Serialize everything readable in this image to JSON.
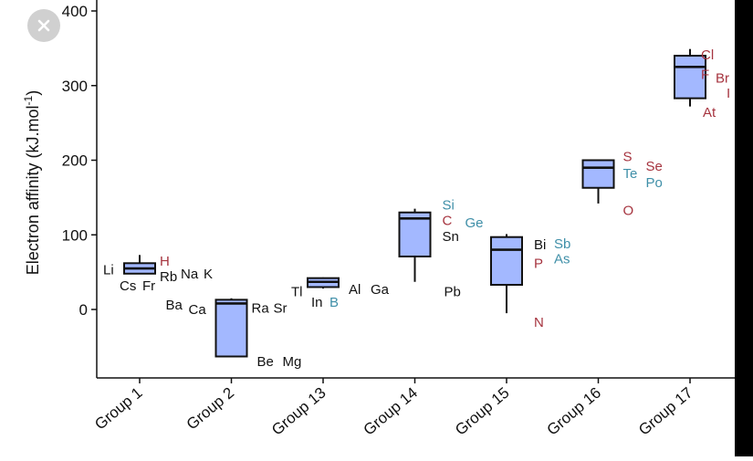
{
  "viewer": {
    "close_icon": "close-icon"
  },
  "colors": {
    "box_fill": "#a3b8ff",
    "black": "#111111",
    "red": "#a6343f",
    "teal": "#3f8fa8"
  },
  "chart_data": {
    "type": "box",
    "title": "",
    "xlabel": "",
    "ylabel": "Electron affinity (kJ.mol",
    "ylabel_sup": "-1",
    "ylabel_close": ")",
    "ylim": [
      -95,
      405
    ],
    "yticks": [
      0,
      100,
      200,
      300,
      400
    ],
    "grid": false,
    "categories": [
      "Group 1",
      "Group 2",
      "Group 13",
      "Group 14",
      "Group 15",
      "Group 16",
      "Group 17"
    ],
    "boxes": [
      {
        "group": "Group 1",
        "min": 48,
        "q1": 48,
        "median": 55,
        "q3": 62,
        "max": 73
      },
      {
        "group": "Group 2",
        "min": -63,
        "q1": -63,
        "median": 8,
        "q3": 13,
        "max": 15
      },
      {
        "group": "Group 13",
        "min": 28,
        "q1": 30,
        "median": 37,
        "q3": 42,
        "max": 43
      },
      {
        "group": "Group 14",
        "min": 37,
        "q1": 71,
        "median": 122,
        "q3": 130,
        "max": 135
      },
      {
        "group": "Group 15",
        "min": -5,
        "q1": 33,
        "median": 80,
        "q3": 97,
        "max": 101
      },
      {
        "group": "Group 16",
        "min": 142,
        "q1": 163,
        "median": 190,
        "q3": 200,
        "max": 200
      },
      {
        "group": "Group 17",
        "min": 272,
        "q1": 283,
        "median": 325,
        "q3": 340,
        "max": 349
      }
    ],
    "element_labels": [
      {
        "group": "Group 1",
        "text": "Li",
        "y": 53,
        "dx": -40,
        "color": "black"
      },
      {
        "group": "Group 1",
        "text": "H",
        "y": 65,
        "dx": 22,
        "color": "red"
      },
      {
        "group": "Group 1",
        "text": "Rb",
        "y": 44,
        "dx": 22,
        "color": "black"
      },
      {
        "group": "Group 1",
        "text": "Na",
        "y": 48,
        "dx": 45,
        "color": "black"
      },
      {
        "group": "Group 1",
        "text": "K",
        "y": 48,
        "dx": 70,
        "color": "black"
      },
      {
        "group": "Group 1",
        "text": "Cs",
        "y": 32,
        "dx": -22,
        "color": "black"
      },
      {
        "group": "Group 1",
        "text": "Fr",
        "y": 32,
        "dx": 3,
        "color": "black"
      },
      {
        "group": "Group 2",
        "text": "Ba",
        "y": 6,
        "dx": -72,
        "color": "black"
      },
      {
        "group": "Group 2",
        "text": "Ca",
        "y": 0,
        "dx": -47,
        "color": "black"
      },
      {
        "group": "Group 2",
        "text": "Ra",
        "y": 2,
        "dx": 22,
        "color": "black"
      },
      {
        "group": "Group 2",
        "text": "Sr",
        "y": 2,
        "dx": 46,
        "color": "black"
      },
      {
        "group": "Group 2",
        "text": "Be",
        "y": -70,
        "dx": 28,
        "color": "black"
      },
      {
        "group": "Group 2",
        "text": "Mg",
        "y": -70,
        "dx": 56,
        "color": "black"
      },
      {
        "group": "Group 13",
        "text": "Tl",
        "y": 24,
        "dx": -35,
        "color": "black"
      },
      {
        "group": "Group 13",
        "text": "Al",
        "y": 27,
        "dx": 28,
        "color": "black"
      },
      {
        "group": "Group 13",
        "text": "Ga",
        "y": 27,
        "dx": 52,
        "color": "black"
      },
      {
        "group": "Group 13",
        "text": "In",
        "y": 10,
        "dx": -13,
        "color": "black"
      },
      {
        "group": "Group 13",
        "text": "B",
        "y": 10,
        "dx": 7,
        "color": "teal"
      },
      {
        "group": "Group 14",
        "text": "Si",
        "y": 140,
        "dx": 30,
        "color": "teal"
      },
      {
        "group": "Group 14",
        "text": "C",
        "y": 119,
        "dx": 30,
        "color": "red"
      },
      {
        "group": "Group 14",
        "text": "Ge",
        "y": 116,
        "dx": 55,
        "color": "teal"
      },
      {
        "group": "Group 14",
        "text": "Sn",
        "y": 98,
        "dx": 30,
        "color": "black"
      },
      {
        "group": "Group 14",
        "text": "Pb",
        "y": 24,
        "dx": 32,
        "color": "black"
      },
      {
        "group": "Group 15",
        "text": "Bi",
        "y": 87,
        "dx": 30,
        "color": "black"
      },
      {
        "group": "Group 15",
        "text": "Sb",
        "y": 88,
        "dx": 52,
        "color": "teal"
      },
      {
        "group": "Group 15",
        "text": "As",
        "y": 68,
        "dx": 52,
        "color": "teal"
      },
      {
        "group": "Group 15",
        "text": "P",
        "y": 62,
        "dx": 30,
        "color": "red"
      },
      {
        "group": "Group 15",
        "text": "N",
        "y": -17,
        "dx": 30,
        "color": "red"
      },
      {
        "group": "Group 16",
        "text": "S",
        "y": 205,
        "dx": 27,
        "color": "red"
      },
      {
        "group": "Group 16",
        "text": "Se",
        "y": 192,
        "dx": 52,
        "color": "red"
      },
      {
        "group": "Group 16",
        "text": "Te",
        "y": 182,
        "dx": 27,
        "color": "teal"
      },
      {
        "group": "Group 16",
        "text": "Po",
        "y": 170,
        "dx": 52,
        "color": "teal"
      },
      {
        "group": "Group 16",
        "text": "O",
        "y": 133,
        "dx": 27,
        "color": "red"
      },
      {
        "group": "Group 17",
        "text": "Cl",
        "y": 341,
        "dx": 12,
        "color": "red"
      },
      {
        "group": "Group 17",
        "text": "F",
        "y": 315,
        "dx": 12,
        "color": "red"
      },
      {
        "group": "Group 17",
        "text": "Br",
        "y": 310,
        "dx": 28,
        "color": "red"
      },
      {
        "group": "Group 17",
        "text": "I",
        "y": 290,
        "dx": 40,
        "color": "red"
      },
      {
        "group": "Group 17",
        "text": "At",
        "y": 264,
        "dx": 14,
        "color": "red"
      }
    ]
  }
}
